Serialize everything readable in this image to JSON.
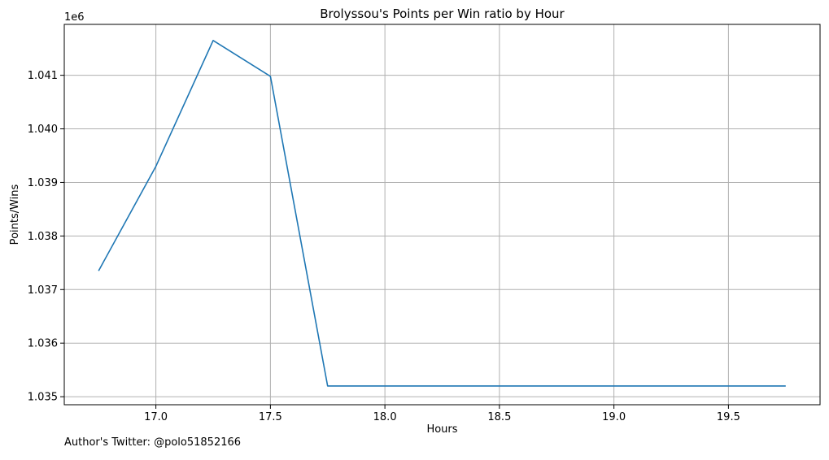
{
  "chart_data": {
    "type": "line",
    "title": "Brolyssou's Points per Win ratio by Hour",
    "xlabel": "Hours",
    "ylabel": "Points/Wins",
    "y_offset_label": "1e6",
    "xlim": [
      16.6,
      19.9
    ],
    "ylim": [
      1.03485,
      1.04195
    ],
    "x_ticks": [
      17.0,
      17.5,
      18.0,
      18.5,
      19.0,
      19.5
    ],
    "x_tick_labels": [
      "17.0",
      "17.5",
      "18.0",
      "18.5",
      "19.0",
      "19.5"
    ],
    "y_ticks": [
      1.035,
      1.036,
      1.037,
      1.038,
      1.039,
      1.04,
      1.041
    ],
    "y_tick_labels": [
      "1.035",
      "1.036",
      "1.037",
      "1.038",
      "1.039",
      "1.040",
      "1.041"
    ],
    "grid": true,
    "line_color": "#1f77b4",
    "series": [
      {
        "x": [
          16.75,
          17.0,
          17.25,
          17.5,
          17.75,
          18.0,
          18.25,
          18.5,
          18.75,
          19.0,
          19.25,
          19.5,
          19.75
        ],
        "values": [
          1.03735,
          1.0393,
          1.04165,
          1.04098,
          1.0352,
          1.0352,
          1.0352,
          1.0352,
          1.0352,
          1.0352,
          1.0352,
          1.0352,
          1.0352
        ]
      }
    ]
  },
  "footnote": "Author's Twitter: @polo51852166"
}
